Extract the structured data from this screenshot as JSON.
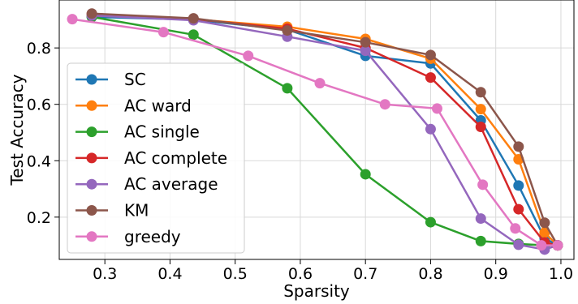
{
  "chart_data": {
    "type": "line",
    "xlabel": "Sparsity",
    "ylabel": "Test Accuracy",
    "xlim": [
      0.23,
      1.02
    ],
    "ylim": [
      0.05,
      0.97
    ],
    "xticks": [
      0.3,
      0.4,
      0.5,
      0.6,
      0.7,
      0.8,
      0.9,
      1.0
    ],
    "xtick_labels": [
      "0.3",
      "0.4",
      "0.5",
      "0.6",
      "0.7",
      "0.8",
      "0.9",
      "1.0"
    ],
    "yticks": [
      0.2,
      0.4,
      0.6,
      0.8
    ],
    "ytick_labels": [
      "0.2",
      "0.4",
      "0.6",
      "0.8"
    ],
    "grid": true,
    "legend_position": "lower-left",
    "series": [
      {
        "name": "SC",
        "color": "#1f77b4",
        "x": [
          0.28,
          0.436,
          0.58,
          0.7,
          0.8,
          0.877,
          0.935,
          0.975,
          0.995
        ],
        "y": [
          0.91,
          0.9,
          0.865,
          0.772,
          0.745,
          0.543,
          0.312,
          0.125,
          0.1
        ]
      },
      {
        "name": "AC ward",
        "color": "#ff7f0e",
        "x": [
          0.28,
          0.436,
          0.58,
          0.7,
          0.8,
          0.877,
          0.935,
          0.975,
          0.995
        ],
        "y": [
          0.915,
          0.902,
          0.875,
          0.832,
          0.762,
          0.583,
          0.405,
          0.145,
          0.1
        ]
      },
      {
        "name": "AC single",
        "color": "#2ca02c",
        "x": [
          0.28,
          0.436,
          0.58,
          0.7,
          0.8,
          0.877,
          0.935,
          0.975,
          0.995
        ],
        "y": [
          0.91,
          0.847,
          0.657,
          0.352,
          0.182,
          0.115,
          0.105,
          0.1,
          0.1
        ]
      },
      {
        "name": "AC complete",
        "color": "#d62728",
        "x": [
          0.28,
          0.436,
          0.58,
          0.7,
          0.8,
          0.877,
          0.935,
          0.975,
          0.995
        ],
        "y": [
          0.92,
          0.903,
          0.868,
          0.8,
          0.695,
          0.52,
          0.228,
          0.11,
          0.1
        ]
      },
      {
        "name": "AC average",
        "color": "#9467bd",
        "x": [
          0.28,
          0.436,
          0.58,
          0.7,
          0.8,
          0.877,
          0.935,
          0.975,
          0.995
        ],
        "y": [
          0.915,
          0.898,
          0.84,
          0.79,
          0.512,
          0.195,
          0.102,
          0.085,
          0.1
        ]
      },
      {
        "name": "KM",
        "color": "#8c564b",
        "x": [
          0.28,
          0.436,
          0.58,
          0.7,
          0.8,
          0.877,
          0.935,
          0.975,
          0.995
        ],
        "y": [
          0.922,
          0.905,
          0.862,
          0.82,
          0.775,
          0.643,
          0.45,
          0.18,
          0.1
        ]
      },
      {
        "name": "greedy",
        "color": "#e377c2",
        "x": [
          0.25,
          0.39,
          0.52,
          0.63,
          0.73,
          0.81,
          0.88,
          0.93,
          0.97,
          0.995
        ],
        "y": [
          0.902,
          0.856,
          0.772,
          0.675,
          0.6,
          0.585,
          0.315,
          0.16,
          0.1,
          0.1
        ]
      }
    ]
  }
}
